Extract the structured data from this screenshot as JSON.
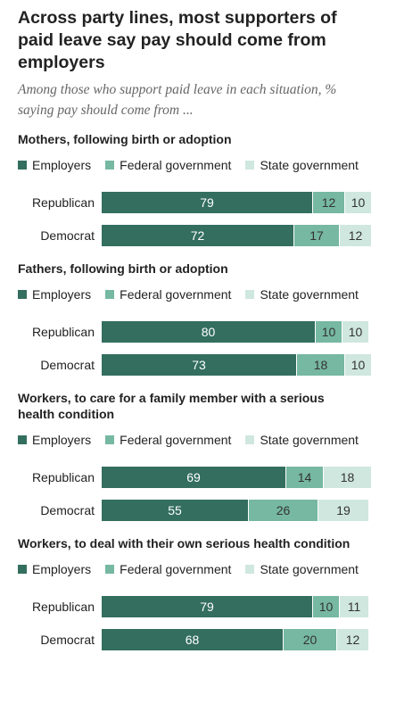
{
  "title": "Across party lines, most supporters of paid leave say pay should come from employers",
  "subtitle": "Among those who support paid leave in each situation, % saying pay should come from ...",
  "chart_data": [
    {
      "type": "bar",
      "orientation": "horizontal",
      "stacked": true,
      "title": "Mothers, following birth or adoption",
      "categories": [
        "Republican",
        "Democrat"
      ],
      "series": [
        {
          "name": "Employers",
          "color": "#336e5e",
          "values": [
            79,
            72
          ]
        },
        {
          "name": "Federal government",
          "color": "#76b8a2",
          "values": [
            12,
            17
          ]
        },
        {
          "name": "State government",
          "color": "#cfe7df",
          "values": [
            10,
            12
          ]
        }
      ]
    },
    {
      "type": "bar",
      "orientation": "horizontal",
      "stacked": true,
      "title": "Fathers, following birth or adoption",
      "categories": [
        "Republican",
        "Democrat"
      ],
      "series": [
        {
          "name": "Employers",
          "color": "#336e5e",
          "values": [
            80,
            73
          ]
        },
        {
          "name": "Federal government",
          "color": "#76b8a2",
          "values": [
            10,
            18
          ]
        },
        {
          "name": "State government",
          "color": "#cfe7df",
          "values": [
            10,
            10
          ]
        }
      ]
    },
    {
      "type": "bar",
      "orientation": "horizontal",
      "stacked": true,
      "title": "Workers, to care for a family member with a serious health condition",
      "categories": [
        "Republican",
        "Democrat"
      ],
      "series": [
        {
          "name": "Employers",
          "color": "#336e5e",
          "values": [
            69,
            55
          ]
        },
        {
          "name": "Federal government",
          "color": "#76b8a2",
          "values": [
            14,
            26
          ]
        },
        {
          "name": "State government",
          "color": "#cfe7df",
          "values": [
            18,
            19
          ]
        }
      ]
    },
    {
      "type": "bar",
      "orientation": "horizontal",
      "stacked": true,
      "title": "Workers, to deal with their own serious health condition",
      "categories": [
        "Republican",
        "Democrat"
      ],
      "series": [
        {
          "name": "Employers",
          "color": "#336e5e",
          "values": [
            79,
            68
          ]
        },
        {
          "name": "Federal government",
          "color": "#76b8a2",
          "values": [
            10,
            20
          ]
        },
        {
          "name": "State government",
          "color": "#cfe7df",
          "values": [
            11,
            12
          ]
        }
      ]
    }
  ]
}
